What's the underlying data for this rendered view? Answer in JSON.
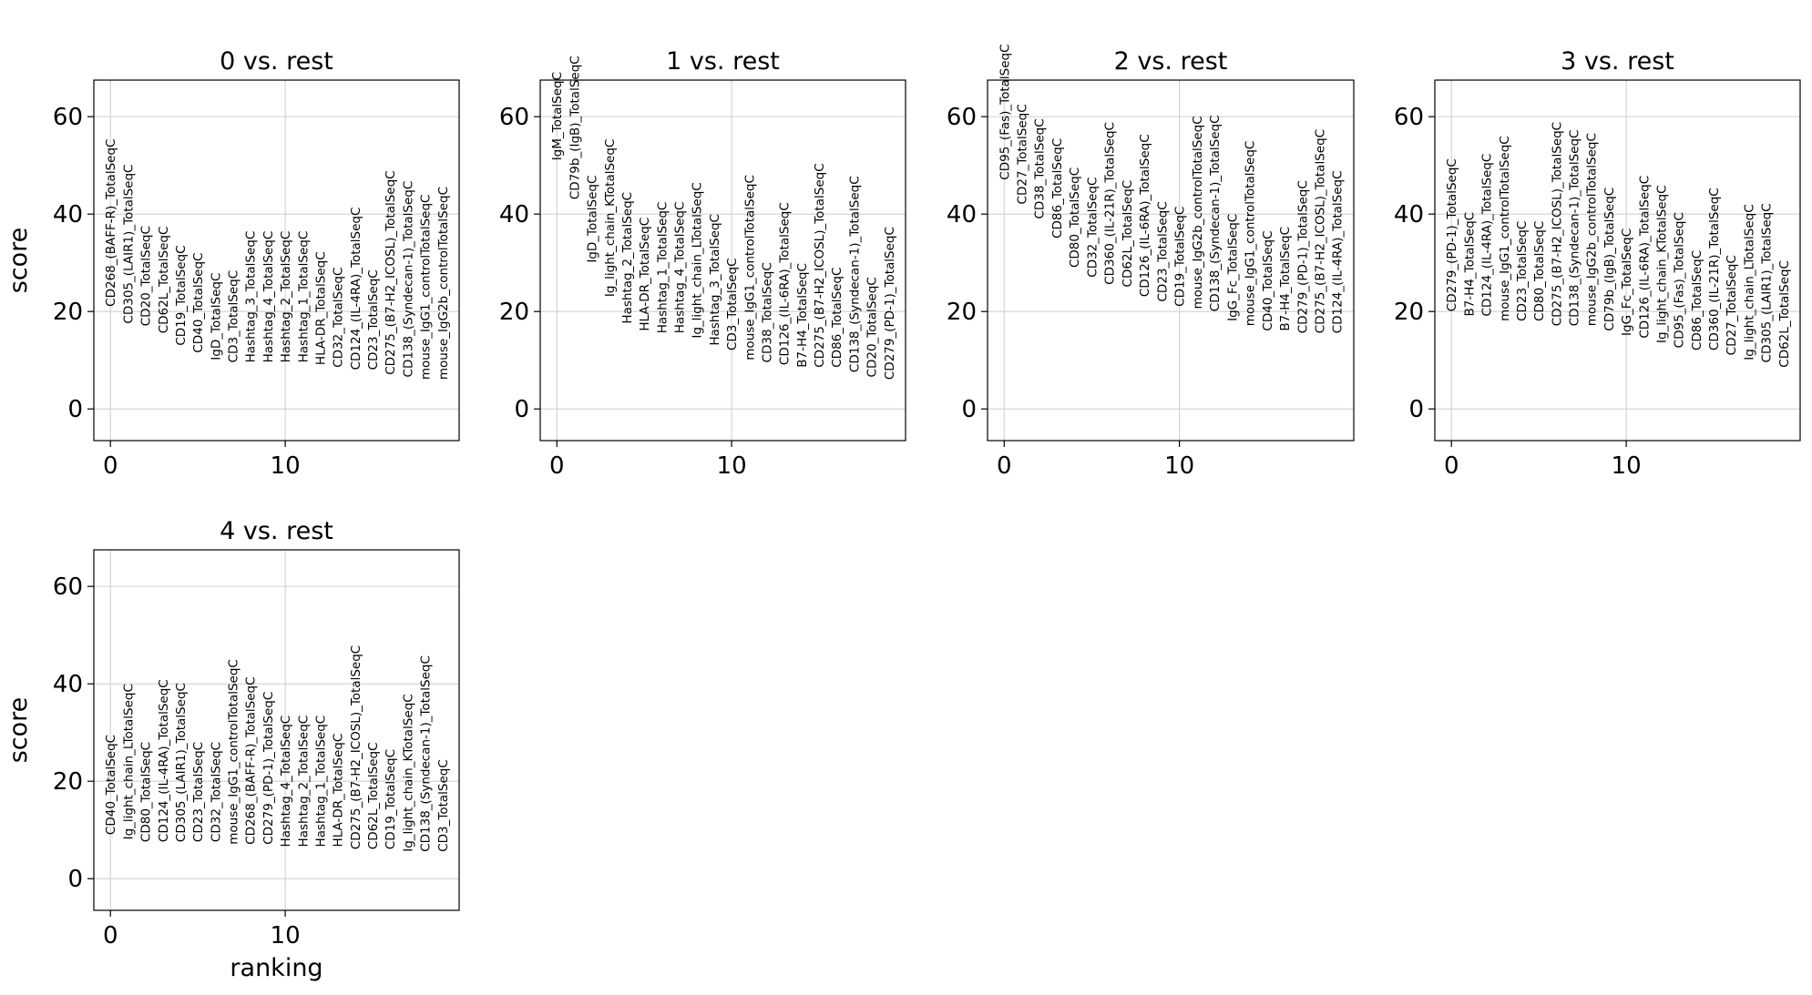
{
  "figure": {
    "ylabel": "score",
    "xlabel": "ranking"
  },
  "chart_data": [
    {
      "type": "scatter",
      "title": "0 vs. rest",
      "ylim": [
        -6.5,
        67.5
      ],
      "xlim": [
        -0.95,
        19.95
      ],
      "xticks": [
        0,
        10
      ],
      "yticks": [
        0,
        20,
        40,
        60
      ],
      "grid": true,
      "ylabel": "score",
      "xlabel": "",
      "genes": [
        "CD268_(BAFF-R)_TotalSeqC",
        "CD305_(LAIR1)_TotalSeqC",
        "CD20_TotalSeqC",
        "CD62L_TotalSeqC",
        "CD19_TotalSeqC",
        "CD40_TotalSeqC",
        "IgD_TotalSeqC",
        "CD3_TotalSeqC",
        "Hashtag_3_TotalSeqC",
        "Hashtag_4_TotalSeqC",
        "Hashtag_2_TotalSeqC",
        "Hashtag_1_TotalSeqC",
        "HLA-DR_TotalSeqC",
        "CD32_TotalSeqC",
        "CD124_(IL-4RA)_TotalSeqC",
        "CD23_TotalSeqC",
        "CD275_(B7-H2_ICOSL)_TotalSeqC",
        "CD138_(Syndecan-1)_TotalSeqC",
        "mouse_IgG1_controlTotalSeqC",
        "mouse_IgG2b_controlTotalSeqC"
      ],
      "scores": [
        21,
        17.5,
        17,
        15.5,
        13,
        11.5,
        10,
        9.5,
        9.5,
        9.5,
        9.5,
        9.5,
        9,
        8.5,
        8,
        8,
        7,
        6.5,
        6,
        6
      ]
    },
    {
      "type": "scatter",
      "title": "1 vs. rest",
      "ylim": [
        -6.5,
        67.5
      ],
      "xlim": [
        -0.95,
        19.95
      ],
      "xticks": [
        0,
        10
      ],
      "yticks": [
        0,
        20,
        40,
        60
      ],
      "grid": true,
      "ylabel": "",
      "xlabel": "",
      "genes": [
        "IgM_TotalSeqC",
        "CD79b_(IgB)_TotalSeqC",
        "IgD_TotalSeqC",
        "Ig_light_chain_KTotalSeqC",
        "Hashtag_2_TotalSeqC",
        "HLA-DR_TotalSeqC",
        "Hashtag_1_TotalSeqC",
        "Hashtag_4_TotalSeqC",
        "Ig_light_chain_LTotalSeqC",
        "Hashtag_3_TotalSeqC",
        "CD3_TotalSeqC",
        "mouse_IgG1_controlTotalSeqC",
        "CD38_TotalSeqC",
        "CD126_(IL-6RA)_TotalSeqC",
        "B7-H4_TotalSeqC",
        "CD275_(B7-H2_ICOSL)_TotalSeqC",
        "CD86_TotalSeqC",
        "CD138_(Syndecan-1)_TotalSeqC",
        "CD20_TotalSeqC",
        "CD279_(PD-1)_TotalSeqC"
      ],
      "scores": [
        51,
        43,
        30,
        23,
        17.5,
        16,
        15.5,
        15.5,
        14.5,
        13,
        12,
        10,
        9.5,
        9,
        8.5,
        8.5,
        8.5,
        7.5,
        6.5,
        6
      ]
    },
    {
      "type": "scatter",
      "title": "2 vs. rest",
      "ylim": [
        -6.5,
        67.5
      ],
      "xlim": [
        -0.95,
        19.95
      ],
      "xticks": [
        0,
        10
      ],
      "yticks": [
        0,
        20,
        40,
        60
      ],
      "grid": true,
      "ylabel": "",
      "xlabel": "",
      "genes": [
        "CD95_(Fas)_TotalSeqC",
        "CD27_TotalSeqC",
        "CD38_TotalSeqC",
        "CD86_TotalSeqC",
        "CD80_TotalSeqC",
        "CD32_TotalSeqC",
        "CD360_(IL-21R)_TotalSeqC",
        "CD62L_TotalSeqC",
        "CD126_(IL-6RA)_TotalSeqC",
        "CD23_TotalSeqC",
        "CD19_TotalSeqC",
        "mouse_IgG2b_controlTotalSeqC",
        "CD138_(Syndecan-1)_TotalSeqC",
        "IgG_Fc_TotalSeqC",
        "mouse_IgG1_controlTotalSeqC",
        "CD40_TotalSeqC",
        "B7-H4_TotalSeqC",
        "CD279_(PD-1)_TotalSeqC",
        "CD275_(B7-H2_ICOSL)_TotalSeqC",
        "CD124_(IL-4RA)_TotalSeqC"
      ],
      "scores": [
        47,
        42,
        39,
        35,
        29,
        27,
        25.5,
        25,
        23,
        22,
        21,
        20.5,
        20,
        18,
        17,
        16,
        16,
        15.5,
        15.5,
        15.5
      ]
    },
    {
      "type": "scatter",
      "title": "3 vs. rest",
      "ylim": [
        -6.5,
        67.5
      ],
      "xlim": [
        -0.95,
        19.95
      ],
      "xticks": [
        0,
        10
      ],
      "yticks": [
        0,
        20,
        40,
        60
      ],
      "grid": true,
      "ylabel": "",
      "xlabel": "",
      "genes": [
        "CD279_(PD-1)_TotalSeqC",
        "B7-H4_TotalSeqC",
        "CD124_(IL-4RA)_TotalSeqC",
        "mouse_IgG1_controlTotalSeqC",
        "CD23_TotalSeqC",
        "CD80_TotalSeqC",
        "CD275_(B7-H2_ICOSL)_TotalSeqC",
        "CD138_(Syndecan-1)_TotalSeqC",
        "mouse_IgG2b_controlTotalSeqC",
        "CD79b_(IgB)_TotalSeqC",
        "IgG_Fc_TotalSeqC",
        "CD126_(IL-6RA)_TotalSeqC",
        "Ig_light_chain_KTotalSeqC",
        "CD95_(Fas)_TotalSeqC",
        "CD86_TotalSeqC",
        "CD360_(IL-21R)_TotalSeqC",
        "CD27_TotalSeqC",
        "Ig_light_chain_LTotalSeqC",
        "CD305_(LAIR1)_TotalSeqC",
        "CD62L_TotalSeqC"
      ],
      "scores": [
        20,
        19,
        19,
        18,
        18,
        18,
        17,
        17,
        17,
        16,
        15,
        14.5,
        13.5,
        12.5,
        12,
        12,
        11,
        10,
        9.5,
        8.5
      ]
    },
    {
      "type": "scatter",
      "title": "4 vs. rest",
      "ylim": [
        -6.5,
        67.5
      ],
      "xlim": [
        -0.95,
        19.95
      ],
      "xticks": [
        0,
        10
      ],
      "yticks": [
        0,
        20,
        40,
        60
      ],
      "grid": true,
      "ylabel": "score",
      "xlabel": "ranking",
      "genes": [
        "CD40_TotalSeqC",
        "Ig_light_chain_LTotalSeqC",
        "CD80_TotalSeqC",
        "CD124_(IL-4RA)_TotalSeqC",
        "CD305_(LAIR1)_TotalSeqC",
        "CD23_TotalSeqC",
        "CD32_TotalSeqC",
        "mouse_IgG1_controlTotalSeqC",
        "CD268_(BAFF-R)_TotalSeqC",
        "CD279_(PD-1)_TotalSeqC",
        "Hashtag_4_TotalSeqC",
        "Hashtag_2_TotalSeqC",
        "Hashtag_1_TotalSeqC",
        "HLA-DR_TotalSeqC",
        "CD275_(B7-H2_ICOSL)_TotalSeqC",
        "CD62L_TotalSeqC",
        "CD19_TotalSeqC",
        "Ig_light_chain_KTotalSeqC",
        "CD138_(Syndecan-1)_TotalSeqC",
        "CD3_TotalSeqC"
      ],
      "scores": [
        9,
        8,
        7.5,
        7.5,
        7.5,
        7.5,
        7.5,
        7,
        7,
        7,
        6.5,
        6.5,
        6.5,
        6.5,
        6,
        6,
        6,
        5.5,
        5.5,
        5.5
      ]
    }
  ]
}
